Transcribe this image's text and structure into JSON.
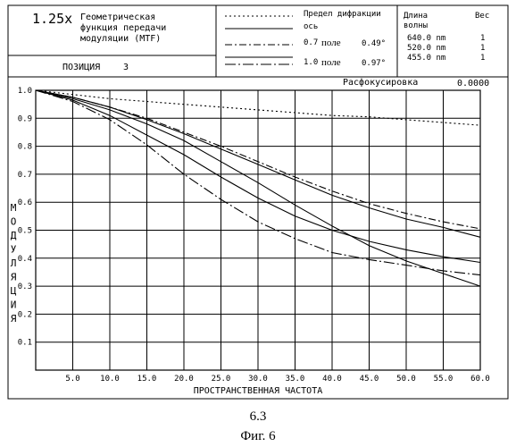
{
  "header": {
    "magnification": "1.25x",
    "title_lines": [
      "Геометрическая",
      "функция передачи",
      "модуляции (MTF)"
    ],
    "position_label": "ПОЗИЦИЯ",
    "position_value": "3",
    "legend": [
      {
        "label": "Предел дифракции",
        "style": "dotted"
      },
      {
        "label": "ось",
        "style": "solid"
      },
      {
        "label": "0.7",
        "word": "поле",
        "angle": "0.49°",
        "style": "dashdot"
      },
      {
        "label": "1.0",
        "word": "поле",
        "angle": "0.97°",
        "style": "longdashdot"
      }
    ],
    "wavelength_header": "Длина",
    "wavelength_header2": "волны",
    "weight_header": "Вес",
    "wavelengths": [
      {
        "value": "640.0 nm",
        "weight": "1"
      },
      {
        "value": "520.0 nm",
        "weight": "1"
      },
      {
        "value": "455.0 nm",
        "weight": "1"
      }
    ]
  },
  "defocus": {
    "label": "Расфокусировка",
    "value": "0.0000"
  },
  "captions": {
    "fig_number": "6.3",
    "fig_label": "Фиг. 6"
  },
  "chart_data": {
    "type": "line",
    "xlabel": "ПРОСТРАНСТВЕННАЯ ЧАСТОТА",
    "ylabel": "МОДУЛЯЦИЯ",
    "xlim": [
      0,
      60
    ],
    "ylim": [
      0,
      1.0
    ],
    "x_ticks": [
      "5.0",
      "10.0",
      "15.0",
      "20.0",
      "25.0",
      "30.0",
      "35.0",
      "40.0",
      "45.0",
      "50.0",
      "55.0",
      "60.0"
    ],
    "y_ticks": [
      "0.1",
      "0.2",
      "0.3",
      "0.4",
      "0.5",
      "0.6",
      "0.7",
      "0.8",
      "0.9",
      "1.0"
    ],
    "grid": true,
    "series": [
      {
        "name": "Предел дифракции",
        "style": "dotted",
        "x": [
          0,
          5,
          10,
          15,
          20,
          25,
          30,
          35,
          40,
          45,
          50,
          55,
          60
        ],
        "y": [
          1.0,
          0.985,
          0.97,
          0.96,
          0.95,
          0.94,
          0.93,
          0.92,
          0.91,
          0.905,
          0.895,
          0.885,
          0.875
        ]
      },
      {
        "name": "ось",
        "style": "solid",
        "x": [
          0,
          5,
          10,
          15,
          20,
          25,
          30,
          35,
          40,
          45,
          50,
          55,
          60
        ],
        "y": [
          1.0,
          0.975,
          0.94,
          0.895,
          0.845,
          0.79,
          0.735,
          0.68,
          0.625,
          0.58,
          0.54,
          0.51,
          0.475
        ]
      },
      {
        "name": "0.7 поле T",
        "style": "solid",
        "x": [
          0,
          5,
          10,
          15,
          20,
          25,
          30,
          35,
          40,
          45,
          50,
          55,
          60
        ],
        "y": [
          1.0,
          0.97,
          0.93,
          0.88,
          0.82,
          0.745,
          0.67,
          0.59,
          0.515,
          0.445,
          0.39,
          0.345,
          0.3
        ]
      },
      {
        "name": "0.7 поле S",
        "style": "dashdot",
        "x": [
          0,
          5,
          10,
          15,
          20,
          25,
          30,
          35,
          40,
          45,
          50,
          55,
          60
        ],
        "y": [
          1.0,
          0.975,
          0.94,
          0.9,
          0.85,
          0.8,
          0.745,
          0.69,
          0.64,
          0.595,
          0.56,
          0.53,
          0.505
        ]
      },
      {
        "name": "1.0 поле T",
        "style": "solid",
        "x": [
          0,
          5,
          10,
          15,
          20,
          25,
          30,
          35,
          40,
          45,
          50,
          55,
          60
        ],
        "y": [
          1.0,
          0.965,
          0.91,
          0.84,
          0.77,
          0.69,
          0.615,
          0.55,
          0.5,
          0.46,
          0.43,
          0.405,
          0.385
        ]
      },
      {
        "name": "1.0 поле S",
        "style": "longdashdot",
        "x": [
          0,
          5,
          10,
          15,
          20,
          25,
          30,
          35,
          40,
          45,
          50,
          55,
          60
        ],
        "y": [
          1.0,
          0.96,
          0.895,
          0.805,
          0.7,
          0.61,
          0.53,
          0.47,
          0.42,
          0.395,
          0.375,
          0.355,
          0.34
        ]
      }
    ]
  }
}
